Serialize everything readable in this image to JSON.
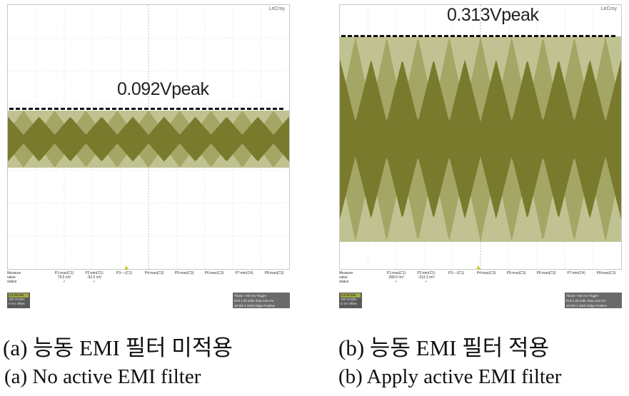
{
  "panels": [
    {
      "id": "a",
      "brand": "LeCroy",
      "peak_label": "0.092Vpeak",
      "peak_value_v": 0.092,
      "measure": {
        "row_labels": [
          "Measure",
          "value",
          "status"
        ],
        "columns": [
          {
            "param": "P1:max(C1)",
            "value": "79.5 mV",
            "status": "✓"
          },
          {
            "param": "P2:min(C1)",
            "value": "-92.5 mV",
            "status": "✓"
          },
          {
            "param": "P3:---(C1)",
            "value": "",
            "status": ""
          },
          {
            "param": "P4:max(C3)",
            "value": "",
            "status": ""
          },
          {
            "param": "P5:max(C3)",
            "value": "",
            "status": ""
          },
          {
            "param": "P6:max(C3)",
            "value": "",
            "status": ""
          },
          {
            "param": "P7:min(C4)",
            "value": "",
            "status": ""
          },
          {
            "param": "P8:max(C3)",
            "value": "",
            "status": ""
          }
        ]
      },
      "channel": {
        "head": "C1 DC1M",
        "lines": [
          "100 mV/div",
          "0 mV offset"
        ]
      },
      "timebase": {
        "lines": [
          "Tbase  -740 ms  Trigger",
          "Roll   1.00 s/div  Stop  416 mV",
          "10 MS   1 MS/s  Edge  Positive"
        ]
      },
      "caption_ko": "(a) 능동 EMI 필터 미적용",
      "caption_en": "(a) No active EMI filter",
      "colors": {
        "light": "#c6c99a",
        "mid": "#a9aa6a",
        "dark": "#7c7c2e",
        "darkest": "#5e5f1f"
      }
    },
    {
      "id": "b",
      "brand": "LeCroy",
      "peak_label": "0.313Vpeak",
      "peak_value_v": 0.313,
      "measure": {
        "row_labels": [
          "Measure",
          "value",
          "status"
        ],
        "columns": [
          {
            "param": "P1:max(C1)",
            "value": "289.0 mV",
            "status": "✓"
          },
          {
            "param": "P2:min(C1)",
            "value": "-313.3 mV",
            "status": "✓"
          },
          {
            "param": "P3:---(C1)",
            "value": "",
            "status": ""
          },
          {
            "param": "P4:max(C3)",
            "value": "",
            "status": ""
          },
          {
            "param": "P5:max(C3)",
            "value": "",
            "status": ""
          },
          {
            "param": "P6:max(C3)",
            "value": "",
            "status": ""
          },
          {
            "param": "P7:min(C4)",
            "value": "",
            "status": ""
          },
          {
            "param": "P8:max(C3)",
            "value": "",
            "status": ""
          }
        ]
      },
      "channel": {
        "head": "C1 DC1M",
        "lines": [
          "100 mV/div",
          "0 mV offset"
        ]
      },
      "timebase": {
        "lines": [
          "Tbase  -740 ms  Trigger",
          "Roll   1.00 s/div  Stop  416 mV",
          "10 MS   1 MS/s  Edge  Positive"
        ]
      },
      "caption_ko": "(b) 능동 EMI 필터 적용",
      "caption_en": "(b) Apply active EMI filter",
      "colors": {
        "light": "#c6c99a",
        "mid": "#a9aa6a",
        "dark": "#7c7c2e",
        "darkest": "#5e5f1f"
      }
    }
  ]
}
